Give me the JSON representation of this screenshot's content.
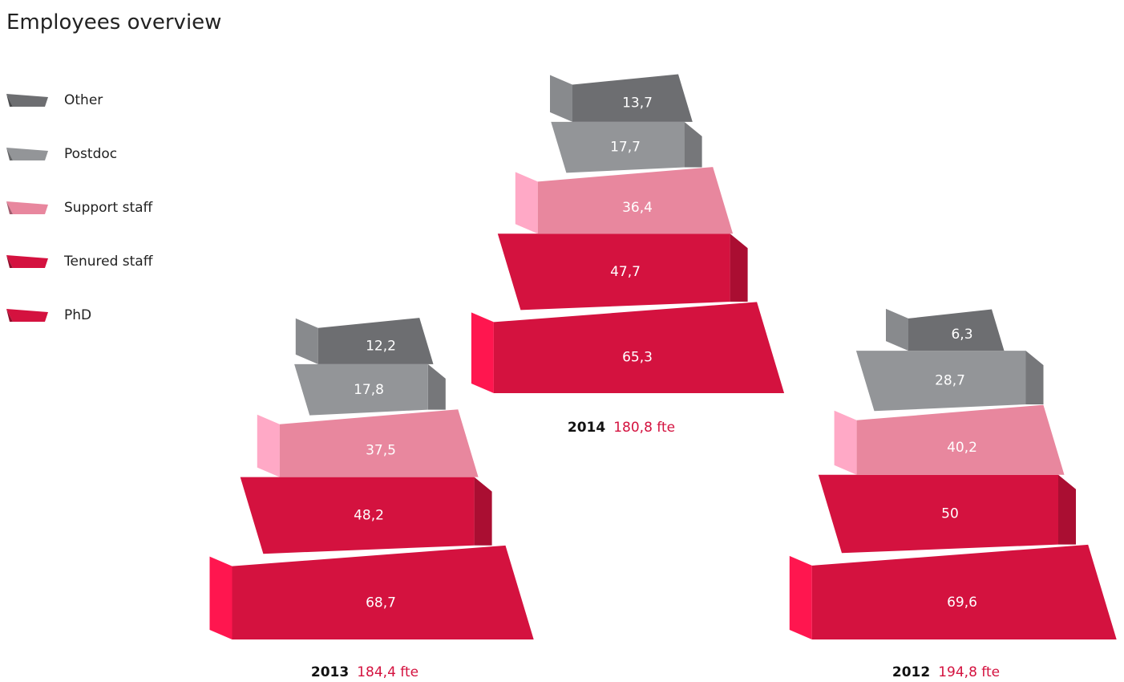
{
  "chart_data": {
    "type": "stack",
    "title": "Employees overview",
    "categories": [
      "2014",
      "2013",
      "2012"
    ],
    "totals": [
      "180,8 fte",
      "184,4 fte",
      "194,8 fte"
    ],
    "series": [
      {
        "name": "Other",
        "color": "#6d6e71",
        "values": [
          13.7,
          12.2,
          6.3
        ],
        "value_labels": [
          "13,7",
          "12,2",
          "6,3"
        ]
      },
      {
        "name": "Postdoc",
        "color": "#939598",
        "values": [
          17.7,
          17.8,
          28.7
        ],
        "value_labels": [
          "17,7",
          "17,8",
          "28,7"
        ]
      },
      {
        "name": "Support staff",
        "color": "#e8879e",
        "values": [
          36.4,
          37.5,
          40.2
        ],
        "value_labels": [
          "36,4",
          "37,5",
          "40,2"
        ]
      },
      {
        "name": "Tenured staff",
        "color": "#d4123f",
        "values": [
          47.7,
          48.2,
          50
        ],
        "value_labels": [
          "47,7",
          "48,2",
          "50"
        ]
      },
      {
        "name": "PhD",
        "color": "#d4123f",
        "values": [
          65.3,
          68.7,
          69.6
        ],
        "value_labels": [
          "65,3",
          "68,7",
          "69,6"
        ]
      }
    ]
  }
}
